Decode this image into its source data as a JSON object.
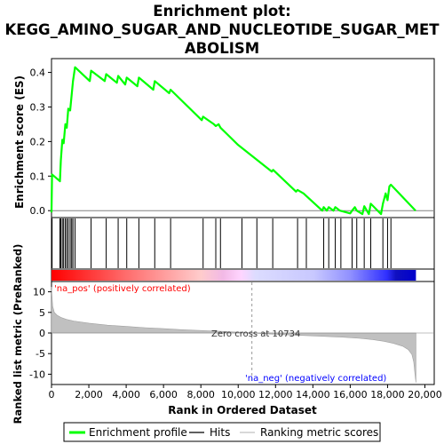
{
  "title_lines": [
    "Enrichment plot:",
    "KEGG_AMINO_SUGAR_AND_NUCLEOTIDE_SUGAR_MET",
    "ABOLISM"
  ],
  "chart_data": [
    {
      "type": "line",
      "name": "enrichment-profile",
      "ylabel": "Enrichment score (ES)",
      "xlim": [
        0,
        20500
      ],
      "ylim": [
        -0.02,
        0.44
      ],
      "yticks": [
        "0.0",
        "0.1",
        "0.2",
        "0.3",
        "0.4"
      ],
      "ytick_values": [
        0.0,
        0.1,
        0.2,
        0.3,
        0.4
      ],
      "grid": false,
      "color": "#00ff00",
      "x": [
        0,
        30,
        450,
        500,
        580,
        650,
        740,
        820,
        900,
        1000,
        1080,
        1150,
        1260,
        2050,
        2120,
        2850,
        2930,
        3500,
        3570,
        3950,
        4030,
        4600,
        4680,
        5450,
        5530,
        6300,
        6380,
        8050,
        8120,
        8700,
        8800,
        8950,
        9050,
        10000,
        11800,
        11870,
        13100,
        13180,
        13500,
        14500,
        14580,
        14750,
        14850,
        15100,
        15200,
        15450,
        16000,
        16100,
        16250,
        16350,
        16650,
        16750,
        17000,
        17100,
        17650,
        17750,
        17900,
        18000,
        18100,
        18180,
        19500
      ],
      "y": [
        -0.005,
        0.105,
        0.085,
        0.145,
        0.205,
        0.195,
        0.25,
        0.24,
        0.295,
        0.29,
        0.335,
        0.375,
        0.415,
        0.375,
        0.405,
        0.375,
        0.395,
        0.37,
        0.39,
        0.365,
        0.385,
        0.36,
        0.385,
        0.35,
        0.375,
        0.34,
        0.35,
        0.262,
        0.272,
        0.25,
        0.245,
        0.25,
        0.24,
        0.19,
        0.113,
        0.118,
        0.055,
        0.06,
        0.05,
        0.0,
        0.01,
        0.0,
        0.01,
        0.0,
        0.01,
        0.0,
        -0.008,
        0.0,
        0.01,
        0.0,
        -0.01,
        0.013,
        -0.01,
        0.02,
        -0.01,
        0.02,
        0.05,
        0.03,
        0.07,
        0.075,
        0.0
      ]
    },
    {
      "type": "hits",
      "name": "hits",
      "xlim": [
        0,
        20500
      ],
      "x": [
        30,
        450,
        500,
        580,
        650,
        740,
        820,
        900,
        1000,
        1080,
        1150,
        1260,
        2120,
        2930,
        3570,
        4030,
        4680,
        5530,
        6380,
        8120,
        8800,
        9050,
        10200,
        11000,
        11850,
        13180,
        13650,
        14580,
        14850,
        15200,
        15500,
        16100,
        16350,
        16750,
        17100,
        17750,
        18000,
        18180
      ]
    },
    {
      "type": "area",
      "name": "ranked-list-metric",
      "ylabel": "Ranked list metric (PreRanked)",
      "xlabel": "Rank in Ordered Dataset",
      "xlim": [
        0,
        20500
      ],
      "ylim": [
        -12.5,
        12.5
      ],
      "xticks": [
        "0",
        "2,000",
        "4,000",
        "6,000",
        "8,000",
        "10,000",
        "12,000",
        "14,000",
        "16,000",
        "18,000",
        "20,000"
      ],
      "xtick_values": [
        0,
        2000,
        4000,
        6000,
        8000,
        10000,
        12000,
        14000,
        16000,
        18000,
        20000
      ],
      "yticks": [
        "10",
        "5",
        "0",
        "-5",
        "-10"
      ],
      "ytick_values": [
        10,
        5,
        0,
        -5,
        -10
      ],
      "grid": false,
      "x": [
        0,
        20,
        60,
        150,
        300,
        500,
        800,
        1200,
        2000,
        3000,
        4000,
        5000,
        6000,
        7000,
        8000,
        9000,
        10000,
        10734,
        11500,
        12500,
        13500,
        14500,
        15500,
        16500,
        17200,
        17800,
        18300,
        18800,
        19100,
        19300,
        19400,
        19470,
        19520
      ],
      "y": [
        11.2,
        9.5,
        6.5,
        5.0,
        4.3,
        3.8,
        3.3,
        2.9,
        2.4,
        1.9,
        1.6,
        1.3,
        1.05,
        0.8,
        0.6,
        0.4,
        0.2,
        0,
        -0.2,
        -0.4,
        -0.6,
        -0.8,
        -1.0,
        -1.3,
        -1.6,
        -2.0,
        -2.5,
        -3.2,
        -4.0,
        -5.2,
        -7.0,
        -10.0,
        -12.0
      ],
      "annotations": {
        "pos_label": "'na_pos' (positively correlated)",
        "neg_label": "'na_neg' (negatively correlated)",
        "zero_cross": "Zero cross at 10734",
        "zero_cross_x": 10734,
        "pos_color": "#ff0000",
        "neg_color": "#0000ff"
      }
    }
  ],
  "legend": {
    "placement": "bottom",
    "items": [
      {
        "label": "Enrichment profile",
        "color": "#00ff00",
        "symbol": "thick-line"
      },
      {
        "label": "Hits",
        "color": "#000000",
        "symbol": "line"
      },
      {
        "label": "Ranking metric scores",
        "color": "#c0c0c0",
        "symbol": "line"
      }
    ]
  }
}
